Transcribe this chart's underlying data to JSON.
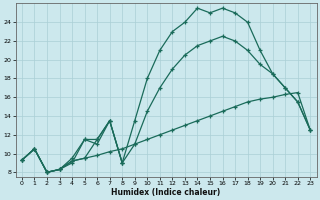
{
  "xlabel": "Humidex (Indice chaleur)",
  "bg_color": "#cce8ed",
  "line_color": "#1a6b5a",
  "grid_color": "#aacfd5",
  "xlim": [
    -0.5,
    23.5
  ],
  "ylim": [
    7.5,
    26
  ],
  "xticks": [
    0,
    1,
    2,
    3,
    4,
    5,
    6,
    7,
    8,
    9,
    10,
    11,
    12,
    13,
    14,
    15,
    16,
    17,
    18,
    19,
    20,
    21,
    22,
    23
  ],
  "yticks": [
    8,
    10,
    12,
    14,
    16,
    18,
    20,
    22,
    24
  ],
  "line1_x": [
    0,
    1,
    2,
    3,
    4,
    5,
    6,
    7,
    8,
    9,
    10,
    11,
    12,
    13,
    14,
    15,
    16,
    17,
    18,
    19,
    20,
    21,
    22,
    23
  ],
  "line1_y": [
    9.3,
    10.5,
    8.0,
    8.3,
    9.2,
    9.5,
    9.8,
    10.2,
    10.5,
    11.0,
    11.5,
    12.0,
    12.5,
    13.0,
    13.5,
    14.0,
    14.5,
    15.0,
    15.5,
    15.8,
    16.0,
    16.3,
    16.5,
    12.5
  ],
  "line2_x": [
    0,
    1,
    2,
    3,
    4,
    5,
    6,
    7,
    8,
    9,
    10,
    11,
    12,
    13,
    14,
    15,
    16,
    17,
    18,
    19,
    20,
    21,
    22,
    23
  ],
  "line2_y": [
    9.3,
    10.5,
    8.0,
    8.3,
    9.5,
    11.5,
    11.0,
    13.5,
    9.0,
    11.0,
    14.5,
    17.0,
    19.0,
    20.5,
    21.5,
    22.0,
    22.5,
    22.0,
    21.0,
    19.5,
    18.5,
    17.0,
    15.5,
    12.5
  ],
  "line3_x": [
    0,
    1,
    2,
    3,
    4,
    5,
    6,
    7,
    8,
    9,
    10,
    11,
    12,
    13,
    14,
    15,
    16,
    17,
    18,
    19,
    20,
    21,
    22,
    23
  ],
  "line3_y": [
    9.3,
    10.5,
    8.0,
    8.3,
    9.2,
    9.5,
    11.5,
    13.5,
    9.0,
    13.5,
    18.0,
    21.0,
    23.0,
    24.0,
    25.5,
    25.0,
    25.5,
    25.0,
    24.0,
    21.0,
    18.5,
    17.0,
    15.5,
    12.5
  ],
  "line4_x": [
    0,
    1,
    2,
    3,
    4,
    5,
    6,
    7,
    8
  ],
  "line4_y": [
    9.3,
    10.5,
    8.0,
    8.3,
    9.0,
    11.5,
    11.5,
    13.5,
    9.0
  ]
}
